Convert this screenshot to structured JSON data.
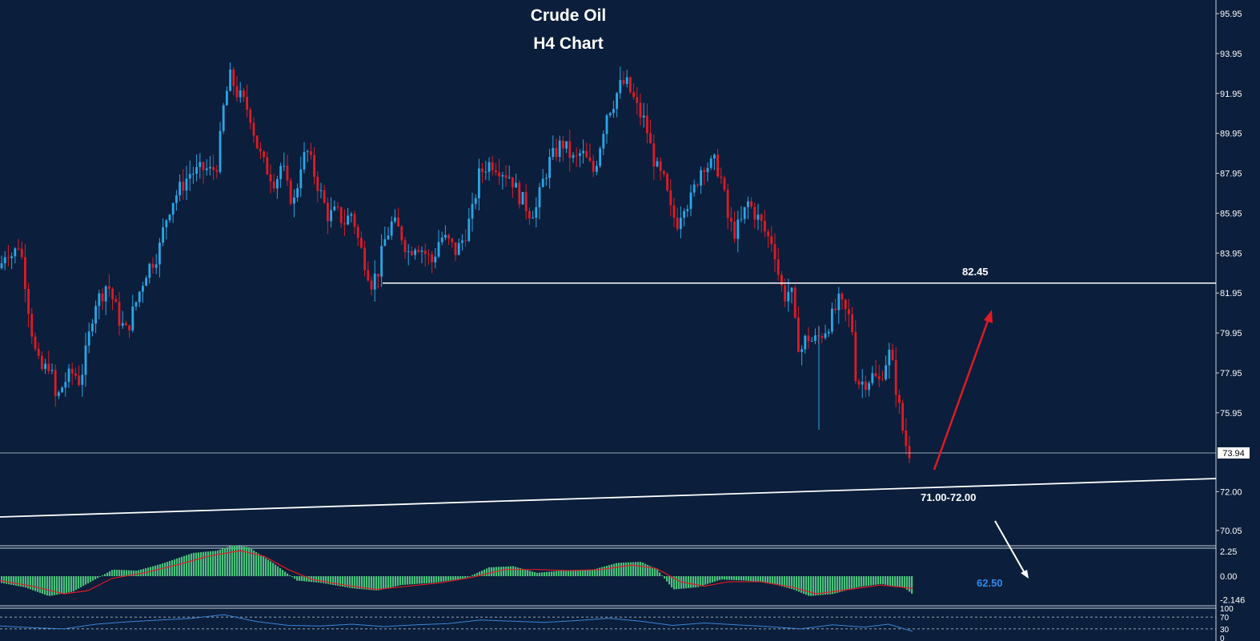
{
  "header": {
    "title": "Crude Oil",
    "subtitle": "H4 Chart"
  },
  "annotations": {
    "resistance_label": "82.45",
    "support_label": "71.00-72.00",
    "target_label": "62.50"
  },
  "price_axis": {
    "ticks": [
      "95.95",
      "93.95",
      "91.95",
      "89.95",
      "87.95",
      "85.95",
      "83.95",
      "81.95",
      "79.95",
      "77.95",
      "75.95",
      "73.94",
      "72.00",
      "70.05"
    ],
    "current_price": "73.94"
  },
  "macd_axis": {
    "ticks": [
      "2.25",
      "0.00",
      "-2.146"
    ]
  },
  "rsi_axis": {
    "ticks": [
      "100",
      "70",
      "30",
      "0"
    ]
  },
  "colors": {
    "background": "#0b1e3b",
    "bull_candle": "#2aa7e8",
    "bear_candle": "#e01b24",
    "histogram": "#4cc07a",
    "signal_line": "#e01b24",
    "rsi_line": "#3b84d8",
    "target_text": "#2f8bf0"
  },
  "chart_data": {
    "type": "candlestick",
    "timeframe": "H4",
    "ylim": [
      69.6,
      96.5
    ],
    "close_path": [
      [
        0,
        83.2
      ],
      [
        8,
        84.2
      ],
      [
        16,
        83.8
      ],
      [
        24,
        84.5
      ],
      [
        30,
        83.0
      ],
      [
        38,
        80.5
      ],
      [
        46,
        78.5
      ],
      [
        54,
        78.0
      ],
      [
        62,
        78.5
      ],
      [
        70,
        76.5
      ],
      [
        80,
        77.5
      ],
      [
        92,
        78.0
      ],
      [
        100,
        77.5
      ],
      [
        110,
        79.5
      ],
      [
        118,
        81.5
      ],
      [
        126,
        81.8
      ],
      [
        134,
        82.5
      ],
      [
        142,
        81.5
      ],
      [
        150,
        80.5
      ],
      [
        158,
        80.0
      ],
      [
        166,
        81.0
      ],
      [
        174,
        82.0
      ],
      [
        182,
        83.0
      ],
      [
        190,
        83.5
      ],
      [
        198,
        84.0
      ],
      [
        206,
        85.5
      ],
      [
        214,
        86.5
      ],
      [
        222,
        87.0
      ],
      [
        230,
        87.5
      ],
      [
        238,
        88.0
      ],
      [
        246,
        88.0
      ],
      [
        256,
        88.2
      ],
      [
        264,
        88.0
      ],
      [
        272,
        88.5
      ],
      [
        280,
        91.5
      ],
      [
        288,
        92.8
      ],
      [
        296,
        92.0
      ],
      [
        304,
        91.5
      ],
      [
        312,
        91.0
      ],
      [
        320,
        89.5
      ],
      [
        328,
        88.5
      ],
      [
        336,
        88.0
      ],
      [
        344,
        87.5
      ],
      [
        352,
        88.5
      ],
      [
        360,
        87.0
      ],
      [
        368,
        86.5
      ],
      [
        376,
        88.5
      ],
      [
        384,
        89.0
      ],
      [
        392,
        88.0
      ],
      [
        400,
        87.0
      ],
      [
        410,
        85.8
      ],
      [
        420,
        86.0
      ],
      [
        430,
        85.5
      ],
      [
        440,
        86.0
      ],
      [
        448,
        84.5
      ],
      [
        456,
        83.5
      ],
      [
        464,
        82.5
      ],
      [
        472,
        83.0
      ],
      [
        480,
        84.5
      ],
      [
        490,
        85.5
      ],
      [
        500,
        85.0
      ],
      [
        510,
        84.0
      ],
      [
        520,
        84.5
      ],
      [
        530,
        84.0
      ],
      [
        540,
        83.5
      ],
      [
        550,
        84.8
      ],
      [
        560,
        84.5
      ],
      [
        570,
        84.0
      ],
      [
        580,
        84.8
      ],
      [
        590,
        86.0
      ],
      [
        598,
        87.8
      ],
      [
        606,
        88.3
      ],
      [
        614,
        88.5
      ],
      [
        622,
        88.3
      ],
      [
        630,
        88.0
      ],
      [
        638,
        87.8
      ],
      [
        646,
        87.0
      ],
      [
        654,
        86.5
      ],
      [
        662,
        86.0
      ],
      [
        670,
        86.2
      ],
      [
        678,
        87.5
      ],
      [
        686,
        88.5
      ],
      [
        694,
        89.0
      ],
      [
        702,
        89.5
      ],
      [
        710,
        89.0
      ],
      [
        718,
        88.5
      ],
      [
        726,
        89.0
      ],
      [
        734,
        88.5
      ],
      [
        742,
        88.0
      ],
      [
        750,
        89.5
      ],
      [
        758,
        91.0
      ],
      [
        766,
        91.5
      ],
      [
        774,
        92.3
      ],
      [
        782,
        92.5
      ],
      [
        790,
        91.8
      ],
      [
        798,
        91.0
      ],
      [
        806,
        90.5
      ],
      [
        814,
        89.0
      ],
      [
        822,
        88.0
      ],
      [
        830,
        87.5
      ],
      [
        838,
        86.0
      ],
      [
        846,
        85.5
      ],
      [
        854,
        86.5
      ],
      [
        862,
        86.5
      ],
      [
        870,
        87.5
      ],
      [
        878,
        88.5
      ],
      [
        886,
        88.3
      ],
      [
        894,
        88.5
      ],
      [
        902,
        87.5
      ],
      [
        910,
        85.5
      ],
      [
        918,
        85.0
      ],
      [
        926,
        85.5
      ],
      [
        934,
        86.5
      ],
      [
        942,
        86.0
      ],
      [
        950,
        85.5
      ],
      [
        958,
        84.8
      ],
      [
        966,
        84.5
      ],
      [
        974,
        82.5
      ],
      [
        980,
        81.8
      ],
      [
        988,
        82.2
      ],
      [
        994,
        80.0
      ],
      [
        1000,
        79.0
      ],
      [
        1008,
        79.8
      ],
      [
        1016,
        79.5
      ],
      [
        1024,
        79.8
      ],
      [
        1032,
        80.2
      ],
      [
        1040,
        80.8
      ],
      [
        1048,
        81.5
      ],
      [
        1056,
        81.0
      ],
      [
        1064,
        80.5
      ],
      [
        1068,
        78.0
      ],
      [
        1072,
        77.5
      ],
      [
        1080,
        77.5
      ],
      [
        1090,
        77.8
      ],
      [
        1098,
        77.5
      ],
      [
        1106,
        78.5
      ],
      [
        1112,
        79.0
      ],
      [
        1118,
        77.5
      ],
      [
        1122,
        76.5
      ],
      [
        1126,
        75.5
      ],
      [
        1130,
        74.5
      ],
      [
        1136,
        74.0
      ],
      [
        1140,
        73.94
      ]
    ],
    "current_price": 73.94,
    "levels": [
      {
        "label": "82.45",
        "value": 82.45
      },
      {
        "label": "71.00-72.00",
        "value": 71.5
      }
    ],
    "scenarios": [
      {
        "direction": "up",
        "toward": 82.45
      },
      {
        "direction": "down",
        "toward": 62.5
      }
    ],
    "macd": {
      "ylim": [
        -2.6,
        2.6
      ],
      "histogram_path": [
        [
          0,
          -0.6
        ],
        [
          30,
          -1.0
        ],
        [
          60,
          -1.8
        ],
        [
          90,
          -1.4
        ],
        [
          120,
          -0.2
        ],
        [
          140,
          0.6
        ],
        [
          170,
          0.5
        ],
        [
          200,
          1.1
        ],
        [
          240,
          2.1
        ],
        [
          270,
          2.3
        ],
        [
          290,
          2.8
        ],
        [
          310,
          2.6
        ],
        [
          340,
          1.2
        ],
        [
          370,
          -0.4
        ],
        [
          400,
          -0.6
        ],
        [
          440,
          -1.1
        ],
        [
          470,
          -1.3
        ],
        [
          500,
          -0.8
        ],
        [
          540,
          -0.6
        ],
        [
          580,
          -0.2
        ],
        [
          610,
          0.8
        ],
        [
          640,
          0.9
        ],
        [
          670,
          0.3
        ],
        [
          700,
          0.5
        ],
        [
          740,
          0.6
        ],
        [
          770,
          1.2
        ],
        [
          800,
          1.3
        ],
        [
          820,
          0.6
        ],
        [
          840,
          -1.2
        ],
        [
          870,
          -1.0
        ],
        [
          900,
          -0.3
        ],
        [
          930,
          -0.4
        ],
        [
          960,
          -0.6
        ],
        [
          990,
          -1.2
        ],
        [
          1010,
          -1.8
        ],
        [
          1040,
          -1.6
        ],
        [
          1070,
          -1.0
        ],
        [
          1100,
          -0.7
        ],
        [
          1130,
          -1.1
        ],
        [
          1140,
          -1.7
        ]
      ],
      "signal_path": [
        [
          0,
          -0.4
        ],
        [
          40,
          -0.9
        ],
        [
          80,
          -1.6
        ],
        [
          110,
          -1.3
        ],
        [
          140,
          -0.2
        ],
        [
          180,
          0.3
        ],
        [
          220,
          1.0
        ],
        [
          260,
          1.8
        ],
        [
          300,
          2.3
        ],
        [
          330,
          1.8
        ],
        [
          360,
          0.6
        ],
        [
          390,
          -0.3
        ],
        [
          430,
          -0.8
        ],
        [
          470,
          -1.2
        ],
        [
          510,
          -0.9
        ],
        [
          550,
          -0.6
        ],
        [
          590,
          -0.1
        ],
        [
          630,
          0.6
        ],
        [
          670,
          0.6
        ],
        [
          710,
          0.5
        ],
        [
          750,
          0.6
        ],
        [
          790,
          1.0
        ],
        [
          820,
          0.7
        ],
        [
          850,
          -0.5
        ],
        [
          880,
          -0.9
        ],
        [
          910,
          -0.5
        ],
        [
          950,
          -0.5
        ],
        [
          990,
          -1.0
        ],
        [
          1020,
          -1.6
        ],
        [
          1060,
          -1.2
        ],
        [
          1100,
          -0.8
        ],
        [
          1140,
          -1.1
        ]
      ]
    },
    "rsi": {
      "ylim": [
        0,
        100
      ],
      "levels": [
        70,
        30
      ],
      "path": [
        [
          0,
          40
        ],
        [
          40,
          34
        ],
        [
          80,
          30
        ],
        [
          120,
          46
        ],
        [
          160,
          54
        ],
        [
          200,
          60
        ],
        [
          240,
          66
        ],
        [
          280,
          78
        ],
        [
          320,
          55
        ],
        [
          360,
          42
        ],
        [
          400,
          40
        ],
        [
          440,
          46
        ],
        [
          480,
          38
        ],
        [
          520,
          44
        ],
        [
          560,
          48
        ],
        [
          600,
          60
        ],
        [
          640,
          56
        ],
        [
          680,
          52
        ],
        [
          720,
          58
        ],
        [
          760,
          66
        ],
        [
          800,
          56
        ],
        [
          840,
          42
        ],
        [
          880,
          50
        ],
        [
          920,
          44
        ],
        [
          960,
          38
        ],
        [
          1000,
          30
        ],
        [
          1040,
          44
        ],
        [
          1080,
          36
        ],
        [
          1110,
          46
        ],
        [
          1140,
          22
        ]
      ]
    }
  }
}
